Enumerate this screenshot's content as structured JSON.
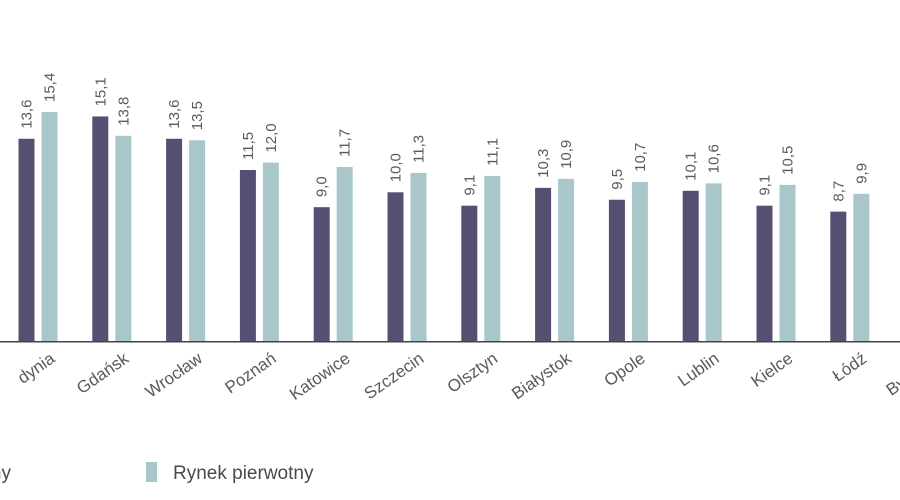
{
  "chart_data": {
    "type": "bar",
    "categories": [
      "Gdynia",
      "Gdańsk",
      "Wrocław",
      "Poznań",
      "Katowice",
      "Szczecin",
      "Olsztyn",
      "Białystok",
      "Opole",
      "Lublin",
      "Kielce",
      "Łódź",
      "Bydgoszcz"
    ],
    "categories_display": [
      "dynia",
      "Gdańsk",
      "Wrocław",
      "Poznań",
      "Katowice",
      "Szczecin",
      "Olsztyn",
      "Białystok",
      "Opole",
      "Lublin",
      "Kielce",
      "Łódź",
      "Bydgost"
    ],
    "series": [
      {
        "name": "Rynek wtórny",
        "legend_display": "orny",
        "color": "#564f72",
        "values": [
          13.6,
          15.1,
          13.6,
          11.5,
          9.0,
          10.0,
          9.1,
          10.3,
          9.5,
          10.1,
          9.1,
          8.7,
          null
        ],
        "labels": [
          "13,6",
          "15,1",
          "13,6",
          "11,5",
          "9,0",
          "10,0",
          "9,1",
          "10,3",
          "9,5",
          "10,1",
          "9,1",
          "8,7",
          ""
        ]
      },
      {
        "name": "Rynek pierwotny",
        "legend_display": "Rynek pierwotny",
        "color": "#a9c7cb",
        "values": [
          15.4,
          13.8,
          13.5,
          12.0,
          11.7,
          11.3,
          11.1,
          10.9,
          10.7,
          10.6,
          10.5,
          9.9,
          null
        ],
        "labels": [
          "15,4",
          "13,8",
          "13,5",
          "12,0",
          "11,7",
          "11,3",
          "11,1",
          "10,9",
          "10,7",
          "10,6",
          "10,5",
          "9,9",
          ""
        ]
      }
    ],
    "ylim": [
      0,
      15.4
    ],
    "axis_color": "#444444",
    "legend_placement": "bottom",
    "grid": false
  }
}
